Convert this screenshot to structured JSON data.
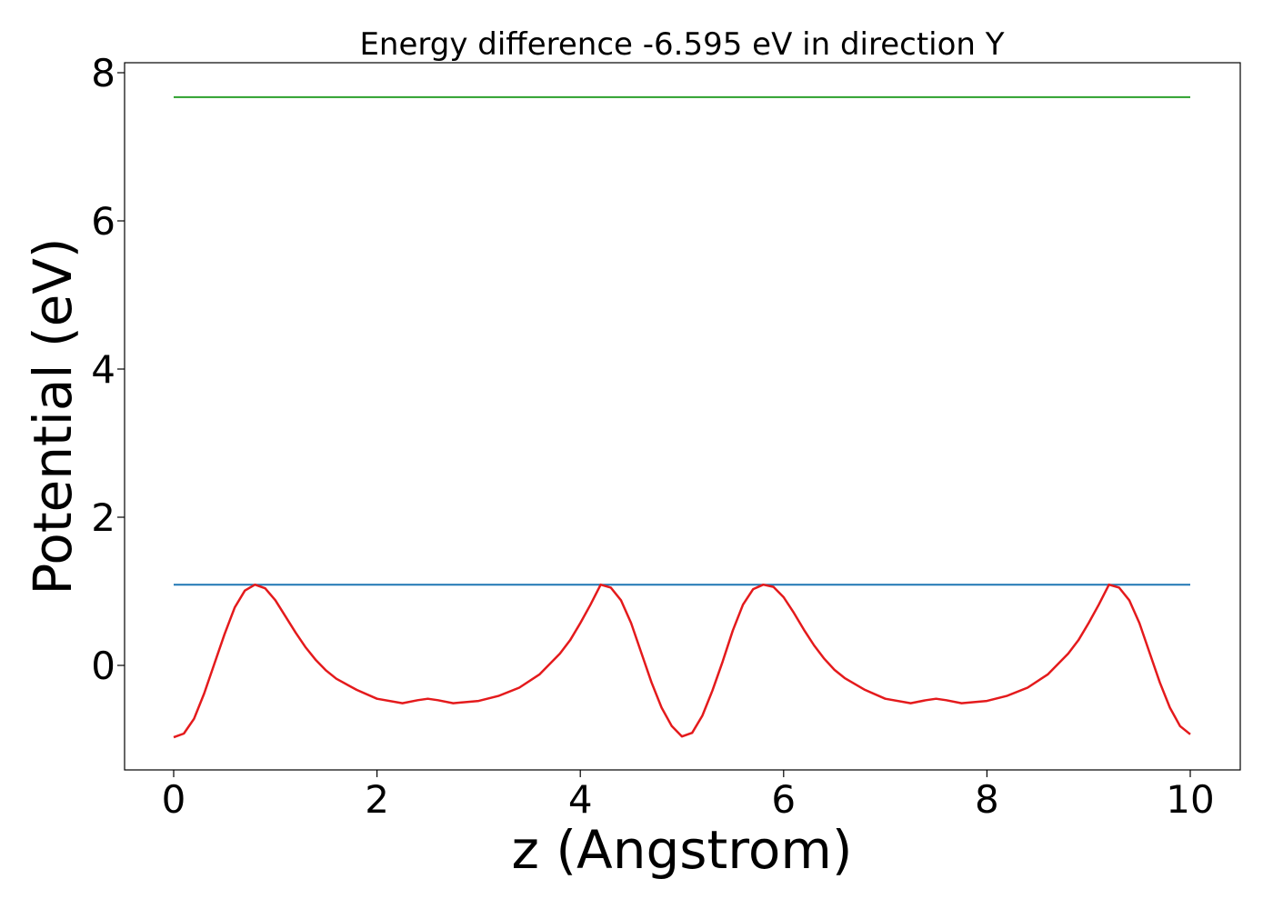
{
  "chart_data": {
    "type": "line",
    "title": "Energy difference -6.595 eV in direction Y",
    "xlabel": "z (Angstrom)",
    "ylabel": "Potential (eV)",
    "xlim": [
      -0.5,
      10.5
    ],
    "ylim": [
      -1.4,
      8.1
    ],
    "x_ticks": [
      "0",
      "2",
      "4",
      "6",
      "8",
      "10"
    ],
    "y_ticks": [
      "0",
      "2",
      "4",
      "6",
      "8"
    ],
    "grid": false,
    "legend": "none",
    "colors": {
      "line1": "#2ca02c",
      "line2": "#1f77b4",
      "line3": "#e41a1c"
    },
    "series": [
      {
        "x": [
          0,
          10
        ],
        "y": [
          7.67,
          7.67
        ]
      },
      {
        "x": [
          0,
          10
        ],
        "y": [
          1.09,
          1.09
        ]
      },
      {
        "x": [
          0,
          0.1,
          0.2,
          0.3,
          0.4,
          0.5,
          0.6,
          0.7,
          0.8,
          0.9,
          1.0,
          1.1,
          1.2,
          1.3,
          1.4,
          1.5,
          1.6,
          1.8,
          2.0,
          2.25,
          2.4,
          2.5,
          2.6,
          2.75,
          3.0,
          3.2,
          3.4,
          3.6,
          3.8,
          3.9,
          4.0,
          4.1,
          4.2,
          4.3,
          4.4,
          4.5,
          4.6,
          4.7,
          4.8,
          4.9,
          5.0,
          5.1,
          5.2,
          5.3,
          5.4,
          5.5,
          5.6,
          5.7,
          5.8,
          5.9,
          6.0,
          6.1,
          6.2,
          6.3,
          6.4,
          6.5,
          6.6,
          6.8,
          7.0,
          7.25,
          7.4,
          7.5,
          7.6,
          7.75,
          8.0,
          8.2,
          8.4,
          8.6,
          8.8,
          8.9,
          9.0,
          9.1,
          9.2,
          9.3,
          9.4,
          9.5,
          9.6,
          9.7,
          9.8,
          9.9,
          10.0
        ],
        "y": [
          -0.97,
          -0.92,
          -0.72,
          -0.38,
          0.02,
          0.42,
          0.78,
          1.01,
          1.09,
          1.04,
          0.88,
          0.66,
          0.44,
          0.24,
          0.07,
          -0.07,
          -0.18,
          -0.33,
          -0.45,
          -0.51,
          -0.47,
          -0.45,
          -0.47,
          -0.51,
          -0.48,
          -0.41,
          -0.3,
          -0.12,
          0.16,
          0.34,
          0.57,
          0.82,
          1.09,
          1.05,
          0.88,
          0.57,
          0.17,
          -0.23,
          -0.57,
          -0.82,
          -0.96,
          -0.91,
          -0.68,
          -0.34,
          0.05,
          0.47,
          0.82,
          1.03,
          1.09,
          1.06,
          0.92,
          0.71,
          0.48,
          0.27,
          0.09,
          -0.06,
          -0.17,
          -0.33,
          -0.45,
          -0.51,
          -0.47,
          -0.45,
          -0.47,
          -0.51,
          -0.48,
          -0.41,
          -0.3,
          -0.12,
          0.16,
          0.34,
          0.57,
          0.82,
          1.09,
          1.05,
          0.88,
          0.57,
          0.17,
          -0.23,
          -0.57,
          -0.82,
          -0.93
        ]
      }
    ]
  }
}
